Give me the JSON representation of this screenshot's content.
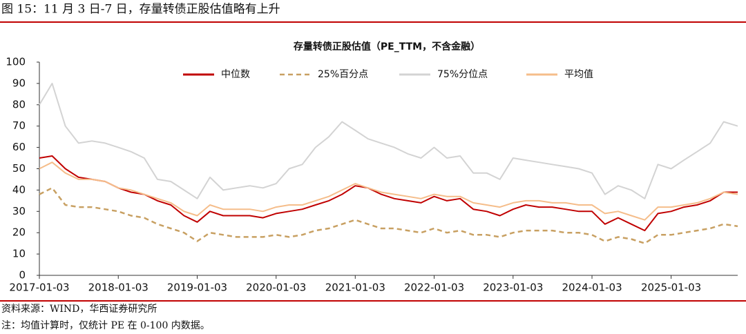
{
  "caption": "图 15：11 月 3 日-7 日，存量转债正股估值略有上升",
  "chart_data": {
    "type": "line",
    "title": "存量转债正股估值（PE_TTM，不含金融）",
    "x": [
      "2017-01-03",
      "2017-03-03",
      "2017-05-03",
      "2017-07-03",
      "2017-09-03",
      "2017-11-03",
      "2018-01-03",
      "2018-03-03",
      "2018-05-03",
      "2018-07-03",
      "2018-09-03",
      "2018-11-03",
      "2019-01-03",
      "2019-03-03",
      "2019-05-03",
      "2019-07-03",
      "2019-09-03",
      "2019-11-03",
      "2020-01-03",
      "2020-03-03",
      "2020-05-03",
      "2020-07-03",
      "2020-09-03",
      "2020-11-03",
      "2021-01-03",
      "2021-03-03",
      "2021-05-03",
      "2021-07-03",
      "2021-09-03",
      "2021-11-03",
      "2022-01-03",
      "2022-03-03",
      "2022-05-03",
      "2022-07-03",
      "2022-09-03",
      "2022-11-03",
      "2023-01-03",
      "2023-03-03",
      "2023-05-03",
      "2023-07-03",
      "2023-09-03",
      "2023-11-03",
      "2024-01-03",
      "2024-03-03",
      "2024-05-03",
      "2024-07-03",
      "2024-09-03",
      "2024-11-03",
      "2025-01-03",
      "2025-03-03",
      "2025-05-03",
      "2025-07-03",
      "2025-09-03",
      "2025-11-07"
    ],
    "series": [
      {
        "name": "中位数",
        "color": "#c00000",
        "dash": false,
        "values": [
          55,
          56,
          50,
          46,
          45,
          44,
          41,
          39,
          38,
          35,
          33,
          28,
          25,
          30,
          28,
          28,
          28,
          27,
          29,
          30,
          31,
          33,
          35,
          38,
          42,
          41,
          38,
          36,
          35,
          34,
          37,
          35,
          36,
          31,
          30,
          28,
          31,
          33,
          32,
          32,
          31,
          30,
          30,
          24,
          27,
          24,
          21,
          29,
          30,
          32,
          33,
          35,
          39,
          39
        ]
      },
      {
        "name": "25%百分点",
        "color": "#c8a062",
        "dash": true,
        "values": [
          38,
          41,
          33,
          32,
          32,
          31,
          30,
          28,
          27,
          24,
          22,
          20,
          16,
          20,
          19,
          18,
          18,
          18,
          19,
          18,
          19,
          21,
          22,
          24,
          26,
          24,
          22,
          22,
          21,
          20,
          22,
          20,
          21,
          19,
          19,
          18,
          20,
          21,
          21,
          21,
          20,
          20,
          19,
          16,
          18,
          17,
          15,
          19,
          19,
          20,
          21,
          22,
          24,
          23
        ]
      },
      {
        "name": "75%分位点",
        "color": "#d3d3d3",
        "dash": false,
        "values": [
          80,
          90,
          70,
          62,
          63,
          62,
          60,
          58,
          55,
          45,
          44,
          40,
          36,
          46,
          40,
          41,
          42,
          41,
          43,
          50,
          52,
          60,
          65,
          72,
          68,
          64,
          62,
          60,
          57,
          55,
          60,
          55,
          56,
          48,
          48,
          45,
          55,
          54,
          53,
          52,
          51,
          50,
          48,
          38,
          42,
          40,
          36,
          52,
          50,
          54,
          58,
          62,
          72,
          70
        ]
      },
      {
        "name": "平均值",
        "color": "#f5bd8a",
        "dash": false,
        "values": [
          50,
          53,
          48,
          45,
          45,
          44,
          41,
          40,
          38,
          36,
          34,
          30,
          28,
          33,
          31,
          31,
          31,
          30,
          32,
          33,
          33,
          35,
          37,
          40,
          43,
          41,
          39,
          38,
          37,
          36,
          38,
          37,
          37,
          34,
          33,
          32,
          34,
          35,
          35,
          34,
          34,
          33,
          33,
          29,
          30,
          28,
          26,
          32,
          32,
          33,
          34,
          36,
          39,
          38
        ]
      }
    ],
    "xlim": [
      "2017-01-03",
      "2025-11-07"
    ],
    "xticks": [
      "2017-01-03",
      "2018-01-03",
      "2019-01-03",
      "2020-01-03",
      "2021-01-03",
      "2022-01-03",
      "2023-01-03",
      "2024-01-03",
      "2025-01-03"
    ],
    "ylim": [
      0,
      100
    ],
    "yticks": [
      0,
      10,
      20,
      30,
      40,
      50,
      60,
      70,
      80,
      90,
      100
    ],
    "legend": "top"
  },
  "source": "资料来源：WIND，华西证券研究所",
  "note": "注：均值计算时，仅统计 PE 在 0-100 内数据。"
}
